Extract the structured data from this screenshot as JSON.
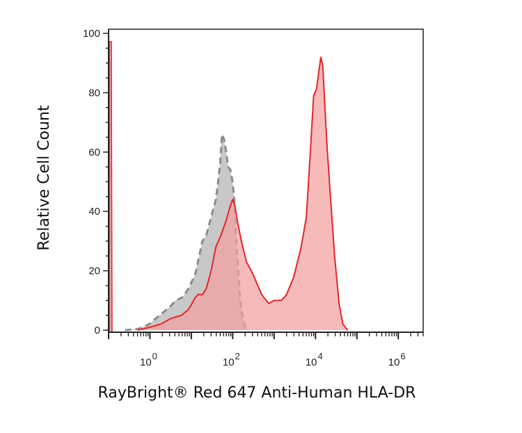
{
  "chart_data": {
    "type": "area",
    "xlabel": "RayBright® Red 647 Anti-Human HLA-DR",
    "ylabel": "Relative Cell Count",
    "xscale": "log",
    "xlim": [
      0.1,
      4000000
    ],
    "ylim": [
      0,
      100
    ],
    "grid": false,
    "y_ticks": [
      {
        "value": 0,
        "label": "0"
      },
      {
        "value": 20,
        "label": "20"
      },
      {
        "value": 40,
        "label": "40"
      },
      {
        "value": 60,
        "label": "60"
      },
      {
        "value": 80,
        "label": "80"
      },
      {
        "value": 100,
        "label": "100"
      }
    ],
    "x_ticks": [
      {
        "value": 1,
        "base": "10",
        "exp": "0"
      },
      {
        "value": 100,
        "base": "10",
        "exp": "2"
      },
      {
        "value": 10000,
        "base": "10",
        "exp": "4"
      },
      {
        "value": 1000000,
        "base": "10",
        "exp": "6"
      }
    ],
    "series": [
      {
        "style": "filled-dashed",
        "fill": "#c8c8c8",
        "stroke": "#8a8a8a",
        "points": [
          [
            0.25,
            0
          ],
          [
            0.55,
            0.5
          ],
          [
            0.95,
            2
          ],
          [
            1.4,
            4
          ],
          [
            2.1,
            6
          ],
          [
            3.1,
            8
          ],
          [
            4.2,
            10
          ],
          [
            6.0,
            11
          ],
          [
            8.6,
            14
          ],
          [
            12.5,
            19
          ],
          [
            18.5,
            30
          ],
          [
            23,
            32
          ],
          [
            30,
            38
          ],
          [
            39,
            44
          ],
          [
            44.5,
            50
          ],
          [
            50,
            57
          ],
          [
            55,
            66
          ],
          [
            62.5,
            64
          ],
          [
            69.5,
            60
          ],
          [
            77.5,
            55
          ],
          [
            88,
            54
          ],
          [
            99,
            50
          ],
          [
            109,
            44
          ],
          [
            120,
            32
          ],
          [
            135,
            21
          ],
          [
            152,
            10
          ],
          [
            174,
            4
          ],
          [
            205,
            1
          ],
          [
            250,
            0
          ]
        ]
      },
      {
        "style": "filled-solid",
        "fill": "#f4a0a0",
        "stroke": "#e0262a",
        "points": [
          [
            0.5,
            0
          ],
          [
            1.0,
            1
          ],
          [
            1.8,
            2
          ],
          [
            3.3,
            4
          ],
          [
            5.8,
            5
          ],
          [
            8.6,
            7
          ],
          [
            12.5,
            11
          ],
          [
            14.5,
            12
          ],
          [
            18.5,
            12
          ],
          [
            23,
            14
          ],
          [
            30,
            20
          ],
          [
            39,
            28
          ],
          [
            52,
            32
          ],
          [
            69.5,
            37
          ],
          [
            88,
            42
          ],
          [
            99,
            44
          ],
          [
            112,
            42
          ],
          [
            133,
            36
          ],
          [
            162,
            30
          ],
          [
            215,
            23
          ],
          [
            305,
            19
          ],
          [
            500,
            12
          ],
          [
            740,
            9
          ],
          [
            1000,
            10
          ],
          [
            1500,
            10
          ],
          [
            2000,
            12
          ],
          [
            3000,
            18
          ],
          [
            4500,
            28
          ],
          [
            6000,
            38
          ],
          [
            7500,
            60
          ],
          [
            9000,
            79
          ],
          [
            10500,
            81
          ],
          [
            12000,
            87
          ],
          [
            13500,
            92
          ],
          [
            15000,
            89
          ],
          [
            16500,
            78
          ],
          [
            19000,
            62
          ],
          [
            23000,
            45
          ],
          [
            29000,
            25
          ],
          [
            37000,
            9
          ],
          [
            46000,
            2
          ],
          [
            60000,
            0
          ]
        ]
      }
    ]
  }
}
